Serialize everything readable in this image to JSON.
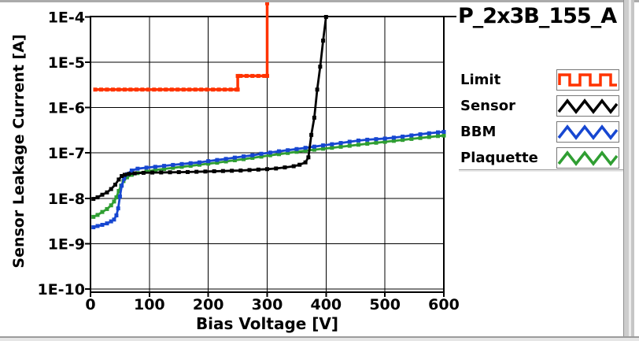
{
  "title": "P_2x3B_155_A",
  "colors": {
    "limit": "#ff3300",
    "sensor": "#000000",
    "bbm": "#1747d1",
    "plaquette": "#2f9e32",
    "grid": "#000000",
    "plot_bg": "#ffffff",
    "page_bg": "#ffffff"
  },
  "legend": {
    "items": [
      {
        "label": "Limit",
        "key": "limit",
        "wave": "square"
      },
      {
        "label": "Sensor",
        "key": "sensor",
        "wave": "triangle"
      },
      {
        "label": "BBM",
        "key": "bbm",
        "wave": "triangle"
      },
      {
        "label": "Plaquette",
        "key": "plaquette",
        "wave": "triangle"
      }
    ]
  },
  "chart_data": {
    "type": "line",
    "title": "P_2x3B_155_A",
    "xlabel": "Bias Voltage [V]",
    "ylabel": "Sensor Leakage Current [A]",
    "grid": true,
    "legend_position": "right",
    "x_axis": {
      "min": 0,
      "max": 600,
      "ticks": [
        0,
        100,
        200,
        300,
        400,
        500,
        600
      ]
    },
    "y_axis": {
      "scale": "log",
      "min_exp": -10,
      "max_exp": -4,
      "tick_labels": [
        "1E-4",
        "1E-5",
        "1E-6",
        "1E-7",
        "1E-8",
        "1E-9",
        "1E-10"
      ],
      "tick_exps": [
        -4,
        -5,
        -6,
        -7,
        -8,
        -9,
        -10
      ]
    },
    "series": [
      {
        "name": "Limit",
        "key": "limit",
        "points": [
          [
            8,
            2.5e-06
          ],
          [
            18,
            2.5e-06
          ],
          [
            28,
            2.5e-06
          ],
          [
            38,
            2.5e-06
          ],
          [
            48,
            2.5e-06
          ],
          [
            58,
            2.5e-06
          ],
          [
            68,
            2.5e-06
          ],
          [
            78,
            2.5e-06
          ],
          [
            88,
            2.5e-06
          ],
          [
            98,
            2.5e-06
          ],
          [
            108,
            2.5e-06
          ],
          [
            118,
            2.5e-06
          ],
          [
            128,
            2.5e-06
          ],
          [
            138,
            2.5e-06
          ],
          [
            148,
            2.5e-06
          ],
          [
            158,
            2.5e-06
          ],
          [
            168,
            2.5e-06
          ],
          [
            178,
            2.5e-06
          ],
          [
            188,
            2.5e-06
          ],
          [
            198,
            2.5e-06
          ],
          [
            208,
            2.5e-06
          ],
          [
            218,
            2.5e-06
          ],
          [
            228,
            2.5e-06
          ],
          [
            238,
            2.5e-06
          ],
          [
            248,
            2.5e-06
          ],
          [
            250,
            2.5e-06
          ],
          [
            250,
            5e-06
          ],
          [
            255,
            5e-06
          ],
          [
            265,
            5e-06
          ],
          [
            275,
            5e-06
          ],
          [
            285,
            5e-06
          ],
          [
            295,
            5e-06
          ],
          [
            300,
            5e-06
          ],
          [
            300,
            0.0002
          ]
        ]
      },
      {
        "name": "Sensor",
        "key": "sensor",
        "points": [
          [
            5,
            9.7e-09
          ],
          [
            12,
            1.05e-08
          ],
          [
            20,
            1.2e-08
          ],
          [
            28,
            1.35e-08
          ],
          [
            35,
            1.6e-08
          ],
          [
            42,
            2e-08
          ],
          [
            48,
            2.6e-08
          ],
          [
            53,
            3.1e-08
          ],
          [
            58,
            3.3e-08
          ],
          [
            65,
            3.45e-08
          ],
          [
            75,
            3.55e-08
          ],
          [
            90,
            3.65e-08
          ],
          [
            105,
            3.7e-08
          ],
          [
            120,
            3.72e-08
          ],
          [
            135,
            3.75e-08
          ],
          [
            150,
            3.78e-08
          ],
          [
            165,
            3.8e-08
          ],
          [
            180,
            3.85e-08
          ],
          [
            195,
            3.9e-08
          ],
          [
            210,
            3.95e-08
          ],
          [
            225,
            4e-08
          ],
          [
            240,
            4.05e-08
          ],
          [
            255,
            4.1e-08
          ],
          [
            270,
            4.2e-08
          ],
          [
            285,
            4.3e-08
          ],
          [
            300,
            4.4e-08
          ],
          [
            315,
            4.55e-08
          ],
          [
            330,
            4.8e-08
          ],
          [
            345,
            5.1e-08
          ],
          [
            355,
            5.5e-08
          ],
          [
            365,
            6.2e-08
          ],
          [
            370,
            8e-08
          ],
          [
            375,
            2.5e-07
          ],
          [
            380,
            6e-07
          ],
          [
            385,
            2.5e-06
          ],
          [
            390,
            8e-06
          ],
          [
            395,
            3e-05
          ],
          [
            400,
            0.0001
          ]
        ]
      },
      {
        "name": "BBM",
        "key": "bbm",
        "points": [
          [
            5,
            2.3e-09
          ],
          [
            12,
            2.45e-09
          ],
          [
            20,
            2.6e-09
          ],
          [
            28,
            2.8e-09
          ],
          [
            35,
            3.1e-09
          ],
          [
            40,
            3.4e-09
          ],
          [
            44,
            4.2e-09
          ],
          [
            47,
            6e-09
          ],
          [
            50,
            1.1e-08
          ],
          [
            53,
            1.9e-08
          ],
          [
            57,
            2.7e-08
          ],
          [
            62,
            3.4e-08
          ],
          [
            70,
            4.1e-08
          ],
          [
            80,
            4.5e-08
          ],
          [
            95,
            4.75e-08
          ],
          [
            110,
            4.95e-08
          ],
          [
            125,
            5.2e-08
          ],
          [
            140,
            5.45e-08
          ],
          [
            155,
            5.7e-08
          ],
          [
            170,
            5.95e-08
          ],
          [
            185,
            6.2e-08
          ],
          [
            200,
            6.6e-08
          ],
          [
            215,
            7e-08
          ],
          [
            230,
            7.4e-08
          ],
          [
            245,
            7.9e-08
          ],
          [
            260,
            8.4e-08
          ],
          [
            275,
            8.9e-08
          ],
          [
            290,
            9.6e-08
          ],
          [
            305,
            1.02e-07
          ],
          [
            320,
            1.09e-07
          ],
          [
            335,
            1.15e-07
          ],
          [
            350,
            1.22e-07
          ],
          [
            365,
            1.3e-07
          ],
          [
            380,
            1.38e-07
          ],
          [
            395,
            1.47e-07
          ],
          [
            410,
            1.56e-07
          ],
          [
            425,
            1.66e-07
          ],
          [
            440,
            1.77e-07
          ],
          [
            455,
            1.88e-07
          ],
          [
            470,
            1.96e-07
          ],
          [
            485,
            2.02e-07
          ],
          [
            500,
            2.08e-07
          ],
          [
            515,
            2.18e-07
          ],
          [
            530,
            2.3e-07
          ],
          [
            545,
            2.44e-07
          ],
          [
            560,
            2.58e-07
          ],
          [
            575,
            2.72e-07
          ],
          [
            590,
            2.85e-07
          ],
          [
            600,
            2.92e-07
          ]
        ]
      },
      {
        "name": "Plaquette",
        "key": "plaquette",
        "points": [
          [
            5,
            3.9e-09
          ],
          [
            12,
            4.3e-09
          ],
          [
            20,
            5e-09
          ],
          [
            28,
            5.8e-09
          ],
          [
            35,
            7e-09
          ],
          [
            40,
            8.5e-09
          ],
          [
            44,
            1.05e-08
          ],
          [
            48,
            1.45e-08
          ],
          [
            52,
            1.9e-08
          ],
          [
            56,
            2.4e-08
          ],
          [
            62,
            2.9e-08
          ],
          [
            70,
            3.3e-08
          ],
          [
            80,
            3.6e-08
          ],
          [
            95,
            3.9e-08
          ],
          [
            110,
            4.2e-08
          ],
          [
            125,
            4.45e-08
          ],
          [
            140,
            4.7e-08
          ],
          [
            155,
            4.95e-08
          ],
          [
            170,
            5.2e-08
          ],
          [
            185,
            5.5e-08
          ],
          [
            200,
            5.8e-08
          ],
          [
            215,
            6.1e-08
          ],
          [
            230,
            6.5e-08
          ],
          [
            245,
            6.9e-08
          ],
          [
            260,
            7.3e-08
          ],
          [
            275,
            7.8e-08
          ],
          [
            290,
            8.3e-08
          ],
          [
            305,
            8.9e-08
          ],
          [
            320,
            9.4e-08
          ],
          [
            335,
            1e-07
          ],
          [
            350,
            1.06e-07
          ],
          [
            365,
            1.12e-07
          ],
          [
            380,
            1.18e-07
          ],
          [
            395,
            1.24e-07
          ],
          [
            410,
            1.3e-07
          ],
          [
            425,
            1.37e-07
          ],
          [
            440,
            1.44e-07
          ],
          [
            455,
            1.52e-07
          ],
          [
            470,
            1.6e-07
          ],
          [
            485,
            1.68e-07
          ],
          [
            500,
            1.76e-07
          ],
          [
            515,
            1.85e-07
          ],
          [
            530,
            1.94e-07
          ],
          [
            545,
            2.04e-07
          ],
          [
            560,
            2.14e-07
          ],
          [
            575,
            2.25e-07
          ],
          [
            590,
            2.36e-07
          ],
          [
            600,
            2.42e-07
          ]
        ]
      }
    ]
  }
}
